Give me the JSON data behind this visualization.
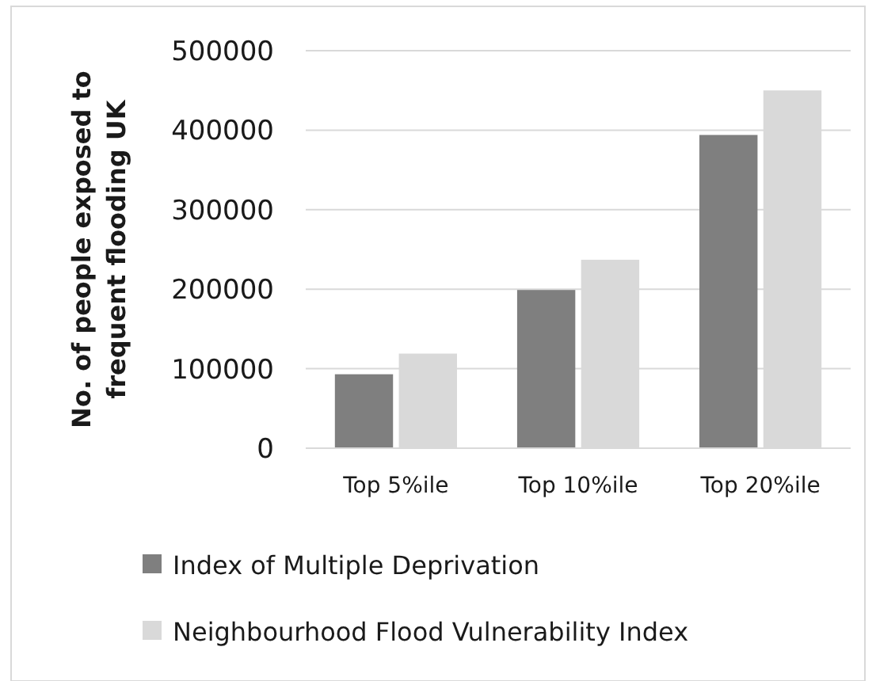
{
  "chart_data": {
    "type": "bar",
    "ylabel": "No.  of people exposed to frequent flooding UK",
    "categories": [
      "Top 5%ile",
      "Top 10%ile",
      "Top 20%ile"
    ],
    "series": [
      {
        "name": "Index of Multiple Deprivation",
        "color": "#7f7f7f",
        "values": [
          93000,
          199000,
          394000
        ]
      },
      {
        "name": "Neighbourhood Flood Vulnerability Index",
        "color": "#d9d9d9",
        "values": [
          119000,
          237000,
          450000
        ]
      }
    ],
    "ylim": [
      0,
      500000
    ],
    "yticks": [
      0,
      100000,
      200000,
      300000,
      400000,
      500000
    ],
    "grid": "y",
    "legend": "bottom"
  }
}
